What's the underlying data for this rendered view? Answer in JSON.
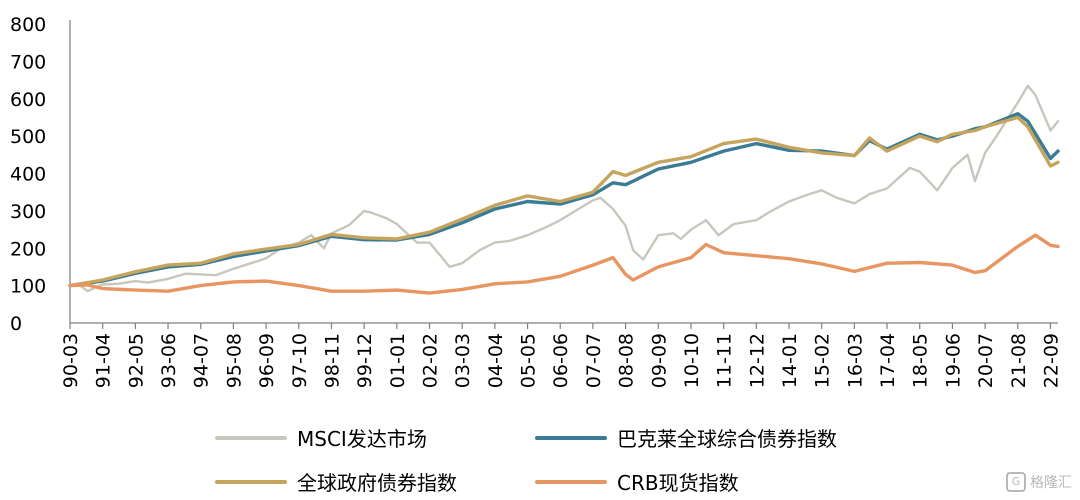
{
  "chart_data": {
    "type": "line",
    "ylim": [
      0,
      800
    ],
    "yticks": [
      0,
      100,
      200,
      300,
      400,
      500,
      600,
      700,
      800
    ],
    "xticks": [
      "90-03",
      "91-04",
      "92-05",
      "93-06",
      "94-07",
      "95-08",
      "96-09",
      "97-10",
      "98-11",
      "99-12",
      "01-01",
      "02-02",
      "03-03",
      "04-04",
      "05-05",
      "06-06",
      "07-07",
      "08-08",
      "09-09",
      "10-10",
      "11-11",
      "12-12",
      "14-01",
      "15-02",
      "16-03",
      "17-04",
      "18-05",
      "19-06",
      "20-07",
      "21-08",
      "22-09"
    ],
    "x_start": "1990-03",
    "x_end": "2022-12",
    "grid": false,
    "legend_position": "bottom",
    "series": [
      {
        "name": "MSCI发达市场",
        "color": "#c7c7bd",
        "points": [
          [
            "1990-03",
            100
          ],
          [
            "1990-07",
            100
          ],
          [
            "1990-10",
            85
          ],
          [
            "1991-01",
            95
          ],
          [
            "1991-04",
            103
          ],
          [
            "1991-10",
            105
          ],
          [
            "1992-05",
            112
          ],
          [
            "1992-10",
            108
          ],
          [
            "1993-06",
            118
          ],
          [
            "1994-01",
            132
          ],
          [
            "1994-07",
            130
          ],
          [
            "1995-01",
            128
          ],
          [
            "1995-08",
            145
          ],
          [
            "1996-03",
            160
          ],
          [
            "1996-09",
            173
          ],
          [
            "1997-03",
            200
          ],
          [
            "1997-10",
            215
          ],
          [
            "1998-03",
            235
          ],
          [
            "1998-08",
            200
          ],
          [
            "1998-11",
            240
          ],
          [
            "1999-06",
            262
          ],
          [
            "1999-12",
            300
          ],
          [
            "2000-03",
            295
          ],
          [
            "2000-09",
            280
          ],
          [
            "2001-01",
            265
          ],
          [
            "2001-09",
            215
          ],
          [
            "2002-02",
            215
          ],
          [
            "2002-07",
            175
          ],
          [
            "2002-10",
            150
          ],
          [
            "2003-03",
            160
          ],
          [
            "2003-10",
            195
          ],
          [
            "2004-04",
            215
          ],
          [
            "2004-10",
            220
          ],
          [
            "2005-05",
            235
          ],
          [
            "2005-12",
            255
          ],
          [
            "2006-06",
            275
          ],
          [
            "2006-12",
            300
          ],
          [
            "2007-07",
            328
          ],
          [
            "2007-10",
            335
          ],
          [
            "2008-03",
            305
          ],
          [
            "2008-08",
            260
          ],
          [
            "2008-11",
            195
          ],
          [
            "2009-03",
            170
          ],
          [
            "2009-09",
            235
          ],
          [
            "2010-03",
            240
          ],
          [
            "2010-06",
            225
          ],
          [
            "2010-10",
            250
          ],
          [
            "2011-04",
            275
          ],
          [
            "2011-09",
            235
          ],
          [
            "2012-03",
            265
          ],
          [
            "2012-12",
            275
          ],
          [
            "2013-06",
            300
          ],
          [
            "2014-01",
            325
          ],
          [
            "2014-09",
            345
          ],
          [
            "2015-02",
            355
          ],
          [
            "2015-08",
            335
          ],
          [
            "2016-03",
            320
          ],
          [
            "2016-09",
            345
          ],
          [
            "2017-04",
            360
          ],
          [
            "2018-01",
            415
          ],
          [
            "2018-05",
            405
          ],
          [
            "2018-12",
            355
          ],
          [
            "2019-06",
            415
          ],
          [
            "2019-12",
            450
          ],
          [
            "2020-03",
            380
          ],
          [
            "2020-07",
            455
          ],
          [
            "2020-12",
            505
          ],
          [
            "2021-08",
            590
          ],
          [
            "2021-12",
            635
          ],
          [
            "2022-03",
            610
          ],
          [
            "2022-09",
            515
          ],
          [
            "2022-12",
            540
          ]
        ]
      },
      {
        "name": "巴克莱全球综合债券指数",
        "color": "#3a7b96",
        "points": [
          [
            "1990-03",
            100
          ],
          [
            "1991-04",
            112
          ],
          [
            "1992-05",
            133
          ],
          [
            "1993-06",
            150
          ],
          [
            "1994-07",
            157
          ],
          [
            "1995-08",
            178
          ],
          [
            "1996-09",
            193
          ],
          [
            "1997-10",
            207
          ],
          [
            "1998-11",
            232
          ],
          [
            "1999-12",
            223
          ],
          [
            "2001-01",
            222
          ],
          [
            "2002-02",
            237
          ],
          [
            "2003-03",
            268
          ],
          [
            "2004-04",
            305
          ],
          [
            "2005-05",
            325
          ],
          [
            "2006-06",
            318
          ],
          [
            "2007-07",
            343
          ],
          [
            "2008-03",
            375
          ],
          [
            "2008-08",
            370
          ],
          [
            "2009-09",
            412
          ],
          [
            "2010-10",
            430
          ],
          [
            "2011-11",
            460
          ],
          [
            "2012-12",
            480
          ],
          [
            "2014-01",
            462
          ],
          [
            "2015-02",
            460
          ],
          [
            "2016-03",
            448
          ],
          [
            "2016-09",
            488
          ],
          [
            "2017-04",
            465
          ],
          [
            "2018-05",
            505
          ],
          [
            "2018-12",
            490
          ],
          [
            "2019-06",
            500
          ],
          [
            "2020-03",
            520
          ],
          [
            "2020-07",
            525
          ],
          [
            "2021-08",
            560
          ],
          [
            "2021-12",
            540
          ],
          [
            "2022-09",
            440
          ],
          [
            "2022-12",
            460
          ]
        ]
      },
      {
        "name": "全球政府债券指数",
        "color": "#c5a55e",
        "points": [
          [
            "1990-03",
            100
          ],
          [
            "1991-04",
            115
          ],
          [
            "1992-05",
            137
          ],
          [
            "1993-06",
            155
          ],
          [
            "1994-07",
            160
          ],
          [
            "1995-08",
            185
          ],
          [
            "1996-09",
            198
          ],
          [
            "1997-10",
            210
          ],
          [
            "1998-11",
            237
          ],
          [
            "1999-12",
            228
          ],
          [
            "2001-01",
            225
          ],
          [
            "2002-02",
            243
          ],
          [
            "2003-03",
            278
          ],
          [
            "2004-04",
            315
          ],
          [
            "2005-05",
            340
          ],
          [
            "2006-06",
            325
          ],
          [
            "2007-07",
            350
          ],
          [
            "2008-03",
            405
          ],
          [
            "2008-08",
            395
          ],
          [
            "2009-09",
            430
          ],
          [
            "2010-10",
            445
          ],
          [
            "2011-11",
            480
          ],
          [
            "2012-12",
            492
          ],
          [
            "2014-01",
            470
          ],
          [
            "2015-02",
            455
          ],
          [
            "2016-03",
            448
          ],
          [
            "2016-09",
            495
          ],
          [
            "2017-04",
            460
          ],
          [
            "2018-05",
            500
          ],
          [
            "2018-12",
            485
          ],
          [
            "2019-06",
            505
          ],
          [
            "2020-03",
            515
          ],
          [
            "2020-07",
            525
          ],
          [
            "2021-08",
            550
          ],
          [
            "2021-12",
            525
          ],
          [
            "2022-09",
            420
          ],
          [
            "2022-12",
            430
          ]
        ]
      },
      {
        "name": "CRB现货指数",
        "color": "#e99562",
        "points": [
          [
            "1990-03",
            100
          ],
          [
            "1990-10",
            102
          ],
          [
            "1991-04",
            92
          ],
          [
            "1992-05",
            88
          ],
          [
            "1993-06",
            85
          ],
          [
            "1994-07",
            100
          ],
          [
            "1995-08",
            110
          ],
          [
            "1996-09",
            112
          ],
          [
            "1997-10",
            100
          ],
          [
            "1998-11",
            85
          ],
          [
            "1999-12",
            85
          ],
          [
            "2001-01",
            88
          ],
          [
            "2002-02",
            80
          ],
          [
            "2003-03",
            90
          ],
          [
            "2004-04",
            105
          ],
          [
            "2005-05",
            110
          ],
          [
            "2006-06",
            125
          ],
          [
            "2007-07",
            155
          ],
          [
            "2008-03",
            175
          ],
          [
            "2008-08",
            130
          ],
          [
            "2008-11",
            115
          ],
          [
            "2009-09",
            150
          ],
          [
            "2010-10",
            175
          ],
          [
            "2011-04",
            210
          ],
          [
            "2011-11",
            188
          ],
          [
            "2012-12",
            180
          ],
          [
            "2014-01",
            172
          ],
          [
            "2015-02",
            158
          ],
          [
            "2016-03",
            138
          ],
          [
            "2017-04",
            160
          ],
          [
            "2018-05",
            162
          ],
          [
            "2019-06",
            155
          ],
          [
            "2020-03",
            135
          ],
          [
            "2020-07",
            140
          ],
          [
            "2021-08",
            205
          ],
          [
            "2022-03",
            235
          ],
          [
            "2022-09",
            208
          ],
          [
            "2022-12",
            205
          ]
        ]
      }
    ]
  },
  "legend": [
    {
      "label": "MSCI发达市场",
      "color": "#c7c7bd"
    },
    {
      "label": "巴克莱全球综合债券指数",
      "color": "#3a7b96"
    },
    {
      "label": "全球政府债券指数",
      "color": "#c5a55e"
    },
    {
      "label": "CRB现货指数",
      "color": "#e99562"
    }
  ],
  "watermark": {
    "text": "格隆汇",
    "icon": "logo-icon"
  }
}
